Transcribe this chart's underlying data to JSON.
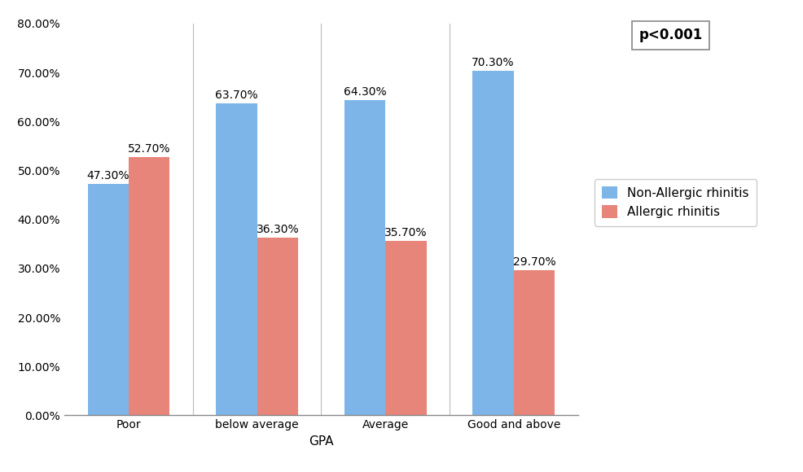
{
  "categories": [
    "Poor",
    "below average",
    "Average",
    "Good and above"
  ],
  "non_allergic": [
    47.3,
    63.7,
    64.3,
    70.3
  ],
  "allergic": [
    52.7,
    36.3,
    35.7,
    29.7
  ],
  "non_allergic_label": "Non-Allergic rhinitis",
  "allergic_label": "Allergic rhinitis",
  "non_allergic_color": "#7EB5E8",
  "allergic_color": "#E8857A",
  "xlabel": "GPA",
  "ylim": [
    0,
    80
  ],
  "yticks": [
    0,
    10,
    20,
    30,
    40,
    50,
    60,
    70,
    80
  ],
  "ytick_labels": [
    "0.00%",
    "10.00%",
    "20.00%",
    "30.00%",
    "40.00%",
    "50.00%",
    "60.00%",
    "70.00%",
    "80.00%"
  ],
  "annotation": "p<0.001",
  "bar_width": 0.32,
  "background_color": "#ffffff",
  "label_fontsize": 10,
  "tick_fontsize": 10,
  "annotation_fontsize": 12,
  "legend_fontsize": 11
}
